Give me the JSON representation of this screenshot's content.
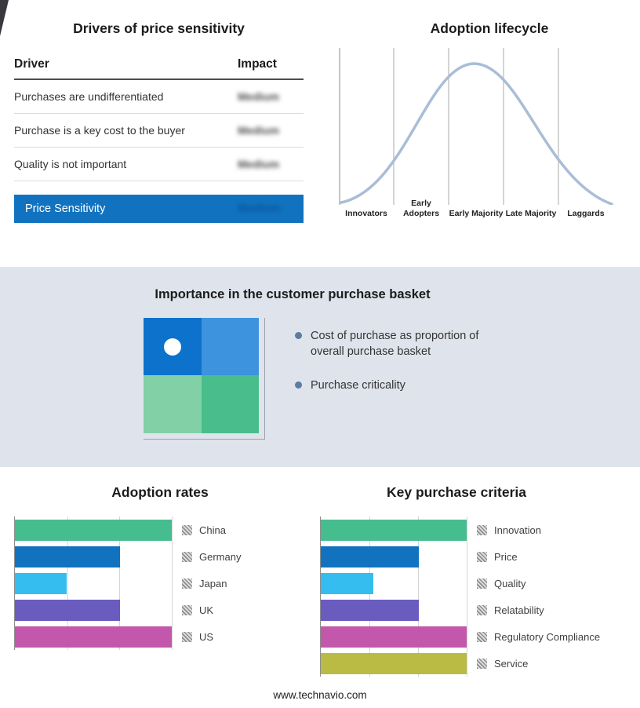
{
  "colors": {
    "highlight_blue": "#1173bf",
    "middle_band_bg": "#dfe4ec",
    "curve_line": "#a9bdd6",
    "bullet": "#5c7ca0",
    "quadrant_top_left": "#0c72cc",
    "quadrant_top_right": "#3d93de",
    "quadrant_bottom_left": "#82d0a6",
    "quadrant_bottom_right": "#49bd8c"
  },
  "basket_panel": {
    "title": "Importance in the customer purchase basket",
    "bullets": [
      "Cost of purchase as proportion of overall purchase basket",
      "Purchase criticality"
    ]
  },
  "footer": {
    "url": "www.technavio.com"
  },
  "chart_data": [
    {
      "id": "drivers-of-price-sensitivity",
      "type": "table",
      "title": "Drivers of price sensitivity",
      "columns": [
        "Driver",
        "Impact"
      ],
      "rows": [
        {
          "driver": "Purchases are undifferentiated",
          "impact": "Medium",
          "redacted": true
        },
        {
          "driver": "Purchase is a key cost to the buyer",
          "impact": "Medium",
          "redacted": true
        },
        {
          "driver": "Quality is not important",
          "impact": "Medium",
          "redacted": true
        }
      ],
      "summary_row": {
        "label": "Price Sensitivity",
        "impact": "Medium",
        "redacted": true,
        "highlight_color": "#1173bf"
      }
    },
    {
      "id": "adoption-lifecycle",
      "type": "line",
      "shape": "bell-curve",
      "title": "Adoption lifecycle",
      "categories": [
        "Innovators",
        "Early Adopters",
        "Early Majority",
        "Late Majority",
        "Laggards"
      ],
      "line_color": "#a9bdd6",
      "grid": true
    },
    {
      "id": "adoption-rates",
      "type": "bar",
      "orientation": "horizontal",
      "title": "Adoption rates",
      "categories": [
        "China",
        "Germany",
        "Japan",
        "UK",
        "US"
      ],
      "values": [
        100,
        67,
        33,
        67,
        100
      ],
      "colors": [
        "#45bd8e",
        "#1173bf",
        "#35bdf0",
        "#6a5bbf",
        "#c257ab"
      ],
      "xlim": [
        0,
        100
      ],
      "grid": true,
      "legend_position": "right"
    },
    {
      "id": "key-purchase-criteria",
      "type": "bar",
      "orientation": "horizontal",
      "title": "Key purchase criteria",
      "categories": [
        "Innovation",
        "Price",
        "Quality",
        "Relatability",
        "Regulatory Compliance",
        "Service"
      ],
      "values": [
        100,
        67,
        36,
        67,
        100,
        100
      ],
      "colors": [
        "#45bd8e",
        "#1173bf",
        "#35bdf0",
        "#6a5bbf",
        "#c257ab",
        "#b9bb44"
      ],
      "xlim": [
        0,
        100
      ],
      "grid": true,
      "legend_position": "right"
    }
  ]
}
